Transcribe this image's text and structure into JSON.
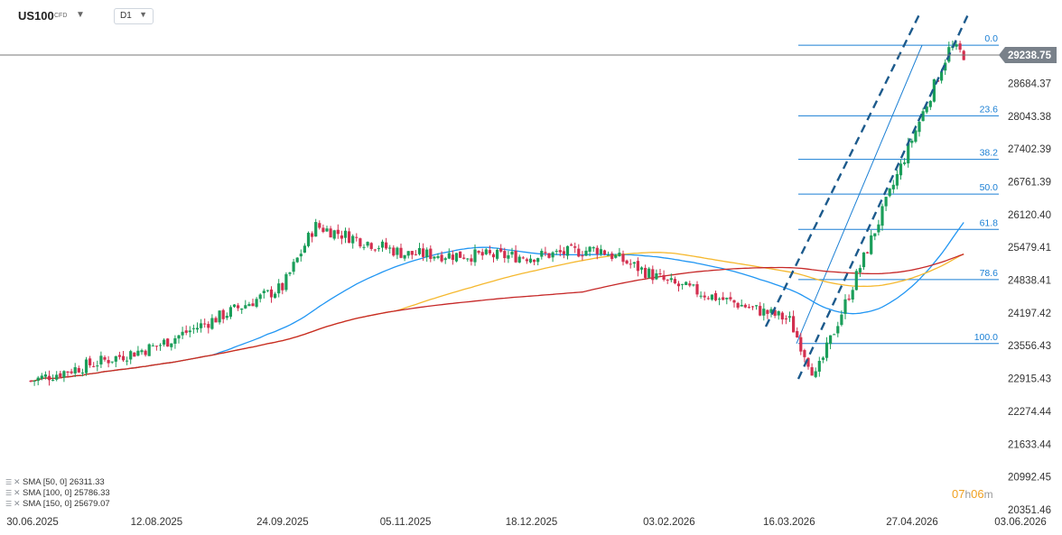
{
  "header": {
    "symbol": "US100",
    "symbol_tag": "CFD",
    "timeframe": "D1"
  },
  "current_price_label": "29238.75",
  "timer": {
    "hours": "07",
    "h": "h",
    "minutes": "06",
    "m": "m"
  },
  "legend": [
    {
      "label": "SMA [50, 0] 26311.33",
      "color": "#2196f3"
    },
    {
      "label": "SMA [100, 0] 25786.33",
      "color": "#f5b82e"
    },
    {
      "label": "SMA [150, 0] 25679.07",
      "color": "#c62828"
    }
  ],
  "colors": {
    "bull": "#1b9e5a",
    "bear": "#d32f4f",
    "sma50": "#2196f3",
    "sma100": "#f5b82e",
    "sma150": "#c62828",
    "fib": "#1a7fd4",
    "channel": "#1c5a8c",
    "price_badge": "#79818a"
  },
  "chart_data": {
    "type": "candlestick",
    "symbol": "US100",
    "timeframe": "D1",
    "y_ticks": [
      29238.75,
      28684.37,
      28043.38,
      27402.39,
      26761.39,
      26120.4,
      25479.41,
      24838.41,
      24197.42,
      23556.43,
      22915.43,
      22274.44,
      21633.44,
      20992.45,
      20351.46
    ],
    "x_ticks": [
      "30.06.2025",
      "12.08.2025",
      "24.09.2025",
      "05.11.2025",
      "18.12.2025",
      "03.02.2026",
      "16.03.2026",
      "27.04.2026",
      "03.06.2026"
    ],
    "ylim": [
      20351.46,
      29238.75
    ],
    "current_price": 29238.75,
    "close_path": [
      [
        "30.06.2025",
        22870
      ],
      [
        "12.08.2025",
        23550
      ],
      [
        "24.09.2025",
        24700
      ],
      [
        "05.10.2025",
        25900
      ],
      [
        "05.11.2025",
        25350
      ],
      [
        "18.12.2025",
        25300
      ],
      [
        "10.01.2026",
        25450
      ],
      [
        "03.02.2026",
        24780
      ],
      [
        "16.03.2026",
        24070
      ],
      [
        "25.03.2026",
        22950
      ],
      [
        "27.04.2026",
        27600
      ],
      [
        "10.05.2026",
        29400
      ],
      [
        "15.05.2026",
        29238.75
      ]
    ],
    "sma": [
      {
        "name": "SMA [50, 0]",
        "value": 26311.33
      },
      {
        "name": "SMA [100, 0]",
        "value": 25786.33
      },
      {
        "name": "SMA [150, 0]",
        "value": 25679.07
      }
    ],
    "fibonacci": [
      {
        "level": "0.0",
        "price": 29430
      },
      {
        "level": "23.6",
        "price": 28050
      },
      {
        "level": "38.2",
        "price": 27200
      },
      {
        "level": "50.0",
        "price": 26520
      },
      {
        "level": "61.8",
        "price": 25830
      },
      {
        "level": "78.6",
        "price": 24850
      },
      {
        "level": "100.0",
        "price": 23600
      }
    ]
  }
}
